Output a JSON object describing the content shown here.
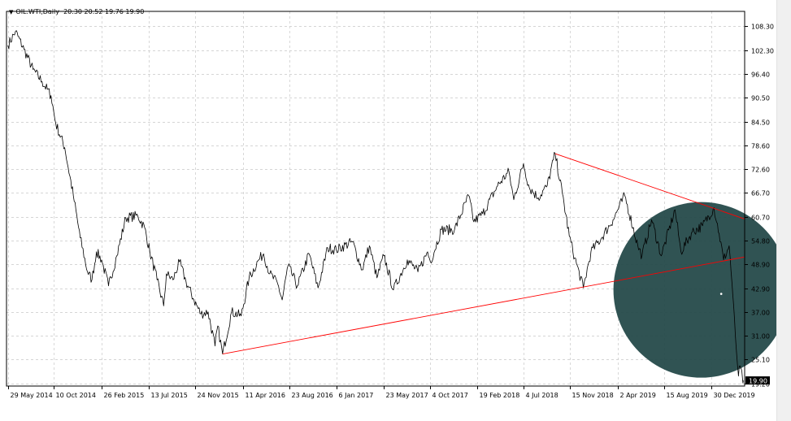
{
  "header": {
    "symbol": "OIL.WTI,Daily",
    "ohlc": "20.30 20.52 19.76 19.90",
    "menu_icon": "triangle-down-icon"
  },
  "colors": {
    "price_line": "#000000",
    "trend_line": "#ff0000",
    "grid": "#c8c8c8",
    "highlight_circle": "#254a4a",
    "price_label_bg": "#000000",
    "price_label_text": "#ffffff"
  },
  "chart_data": {
    "type": "line",
    "title": "",
    "xlabel": "",
    "ylabel": "",
    "grid": true,
    "y_axis_position": "right",
    "ylim": [
      18.5,
      112.0
    ],
    "yticks": [
      "108.30",
      "102.30",
      "96.40",
      "90.50",
      "84.50",
      "78.60",
      "72.60",
      "66.70",
      "60.70",
      "54.80",
      "48.90",
      "42.90",
      "37.00",
      "31.00",
      "25.10",
      "19.20"
    ],
    "xlim": [
      "2014-05-25",
      "2020-04-05"
    ],
    "xticks": [
      {
        "date": "2014-05-29",
        "label": "29 May 2014"
      },
      {
        "date": "2014-10-10",
        "label": "10 Oct 2014"
      },
      {
        "date": "2015-02-26",
        "label": "26 Feb 2015"
      },
      {
        "date": "2015-07-13",
        "label": "13 Jul 2015"
      },
      {
        "date": "2015-11-24",
        "label": "24 Nov 2015"
      },
      {
        "date": "2016-04-11",
        "label": "11 Apr 2016"
      },
      {
        "date": "2016-08-23",
        "label": "23 Aug 2016"
      },
      {
        "date": "2017-01-06",
        "label": "6 Jan 2017"
      },
      {
        "date": "2017-05-23",
        "label": "23 May 2017"
      },
      {
        "date": "2017-10-04",
        "label": "4 Oct 2017"
      },
      {
        "date": "2018-02-19",
        "label": "19 Feb 2018"
      },
      {
        "date": "2018-07-04",
        "label": "4 Jul 2018"
      },
      {
        "date": "2018-11-15",
        "label": "15 Nov 2018"
      },
      {
        "date": "2019-04-02",
        "label": "2 Apr 2019"
      },
      {
        "date": "2019-08-15",
        "label": "15 Aug 2019"
      },
      {
        "date": "2019-12-30",
        "label": "30 Dec 2019"
      }
    ],
    "series": [
      {
        "values": [
          {
            "x": "2014-05-29",
            "y": 103.5
          },
          {
            "x": "2014-06-20",
            "y": 107.0
          },
          {
            "x": "2014-07-15",
            "y": 102.5
          },
          {
            "x": "2014-08-10",
            "y": 97.5
          },
          {
            "x": "2014-09-05",
            "y": 94.5
          },
          {
            "x": "2014-10-01",
            "y": 91.0
          },
          {
            "x": "2014-10-15",
            "y": 84.0
          },
          {
            "x": "2014-11-10",
            "y": 78.0
          },
          {
            "x": "2014-12-05",
            "y": 66.0
          },
          {
            "x": "2014-12-25",
            "y": 55.5
          },
          {
            "x": "2015-01-15",
            "y": 47.0
          },
          {
            "x": "2015-01-28",
            "y": 45.0
          },
          {
            "x": "2015-02-10",
            "y": 52.0
          },
          {
            "x": "2015-02-25",
            "y": 50.0
          },
          {
            "x": "2015-03-17",
            "y": 43.5
          },
          {
            "x": "2015-04-10",
            "y": 51.0
          },
          {
            "x": "2015-05-06",
            "y": 60.5
          },
          {
            "x": "2015-06-10",
            "y": 61.0
          },
          {
            "x": "2015-06-30",
            "y": 58.0
          },
          {
            "x": "2015-07-15",
            "y": 52.0
          },
          {
            "x": "2015-08-05",
            "y": 45.0
          },
          {
            "x": "2015-08-24",
            "y": 38.5
          },
          {
            "x": "2015-09-01",
            "y": 46.5
          },
          {
            "x": "2015-09-20",
            "y": 45.0
          },
          {
            "x": "2015-10-09",
            "y": 49.5
          },
          {
            "x": "2015-10-28",
            "y": 44.5
          },
          {
            "x": "2015-11-20",
            "y": 40.0
          },
          {
            "x": "2015-12-10",
            "y": 36.5
          },
          {
            "x": "2015-12-31",
            "y": 37.0
          },
          {
            "x": "2016-01-20",
            "y": 28.5
          },
          {
            "x": "2016-01-28",
            "y": 33.5
          },
          {
            "x": "2016-02-11",
            "y": 26.5
          },
          {
            "x": "2016-03-08",
            "y": 37.0
          },
          {
            "x": "2016-04-05",
            "y": 36.0
          },
          {
            "x": "2016-04-28",
            "y": 45.5
          },
          {
            "x": "2016-05-26",
            "y": 50.0
          },
          {
            "x": "2016-06-09",
            "y": 51.5
          },
          {
            "x": "2016-06-27",
            "y": 46.5
          },
          {
            "x": "2016-07-20",
            "y": 44.0
          },
          {
            "x": "2016-08-02",
            "y": 40.0
          },
          {
            "x": "2016-08-19",
            "y": 48.5
          },
          {
            "x": "2016-09-15",
            "y": 43.5
          },
          {
            "x": "2016-10-19",
            "y": 51.5
          },
          {
            "x": "2016-11-14",
            "y": 43.0
          },
          {
            "x": "2016-12-12",
            "y": 53.0
          },
          {
            "x": "2017-01-06",
            "y": 52.5
          },
          {
            "x": "2017-02-22",
            "y": 54.5
          },
          {
            "x": "2017-03-22",
            "y": 47.5
          },
          {
            "x": "2017-04-12",
            "y": 53.5
          },
          {
            "x": "2017-05-04",
            "y": 45.5
          },
          {
            "x": "2017-05-24",
            "y": 51.0
          },
          {
            "x": "2017-06-21",
            "y": 42.5
          },
          {
            "x": "2017-07-31",
            "y": 50.0
          },
          {
            "x": "2017-08-31",
            "y": 47.0
          },
          {
            "x": "2017-09-28",
            "y": 52.0
          },
          {
            "x": "2017-10-06",
            "y": 49.5
          },
          {
            "x": "2017-11-07",
            "y": 57.5
          },
          {
            "x": "2017-12-15",
            "y": 57.5
          },
          {
            "x": "2018-01-25",
            "y": 66.0
          },
          {
            "x": "2018-02-09",
            "y": 59.5
          },
          {
            "x": "2018-03-07",
            "y": 61.5
          },
          {
            "x": "2018-04-19",
            "y": 68.5
          },
          {
            "x": "2018-05-22",
            "y": 72.0
          },
          {
            "x": "2018-06-05",
            "y": 65.0
          },
          {
            "x": "2018-07-03",
            "y": 74.0
          },
          {
            "x": "2018-07-20",
            "y": 68.0
          },
          {
            "x": "2018-08-15",
            "y": 65.5
          },
          {
            "x": "2018-09-10",
            "y": 68.5
          },
          {
            "x": "2018-10-03",
            "y": 76.5
          },
          {
            "x": "2018-10-24",
            "y": 66.5
          },
          {
            "x": "2018-11-13",
            "y": 56.0
          },
          {
            "x": "2018-11-29",
            "y": 50.5
          },
          {
            "x": "2018-12-24",
            "y": 43.0
          },
          {
            "x": "2019-01-15",
            "y": 52.0
          },
          {
            "x": "2019-02-15",
            "y": 55.5
          },
          {
            "x": "2019-03-20",
            "y": 60.0
          },
          {
            "x": "2019-04-23",
            "y": 66.0
          },
          {
            "x": "2019-05-31",
            "y": 53.5
          },
          {
            "x": "2019-06-12",
            "y": 51.0
          },
          {
            "x": "2019-07-10",
            "y": 60.0
          },
          {
            "x": "2019-08-07",
            "y": 51.0
          },
          {
            "x": "2019-09-16",
            "y": 62.5
          },
          {
            "x": "2019-10-03",
            "y": 52.0
          },
          {
            "x": "2019-11-05",
            "y": 57.0
          },
          {
            "x": "2019-12-05",
            "y": 58.5
          },
          {
            "x": "2020-01-07",
            "y": 63.0
          },
          {
            "x": "2020-01-22",
            "y": 56.5
          },
          {
            "x": "2020-02-04",
            "y": 50.0
          },
          {
            "x": "2020-02-20",
            "y": 53.5
          },
          {
            "x": "2020-02-28",
            "y": 44.5
          },
          {
            "x": "2020-03-09",
            "y": 31.0
          },
          {
            "x": "2020-03-18",
            "y": 21.0
          },
          {
            "x": "2020-03-23",
            "y": 23.5
          },
          {
            "x": "2020-03-30",
            "y": 20.0
          },
          {
            "x": "2020-04-01",
            "y": 19.9
          }
        ]
      }
    ],
    "trend_lines": [
      {
        "from": {
          "x": "2016-02-11",
          "y": 26.5
        },
        "to": {
          "x": "2020-04-05",
          "y": 50.7
        }
      },
      {
        "from": {
          "x": "2018-10-03",
          "y": 76.5
        },
        "to": {
          "x": "2020-04-05",
          "y": 60.2
        }
      }
    ],
    "last_price_label": "19.90"
  }
}
